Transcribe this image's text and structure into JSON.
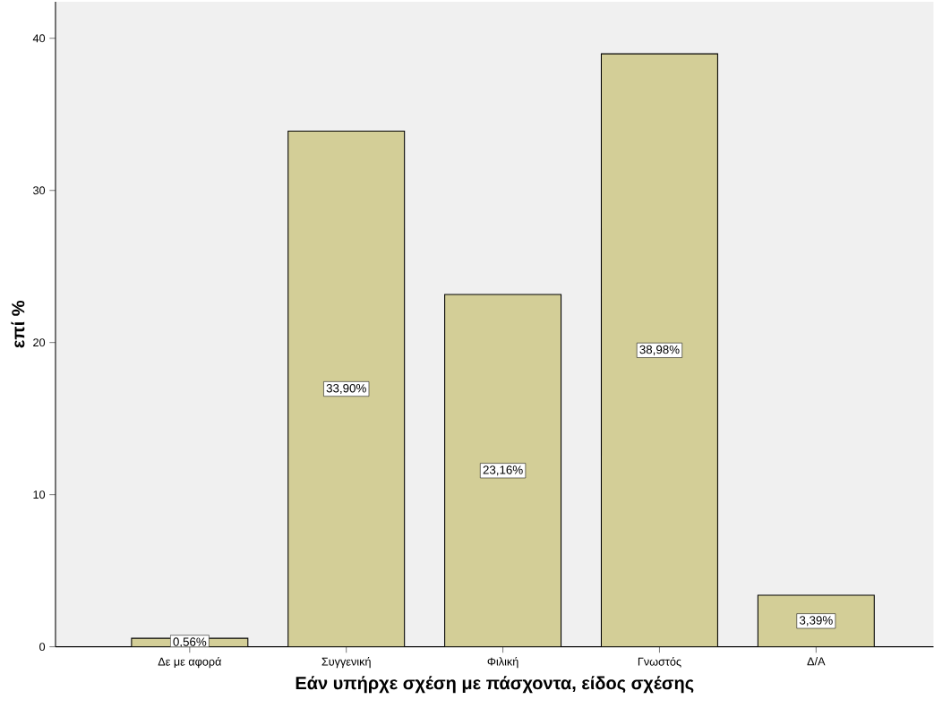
{
  "chart_data": {
    "type": "bar",
    "xlabel": "Εάν υπήρχε σχέση με πάσχοντα, είδος σχέσης",
    "ylabel": "επί %",
    "categories": [
      "Δε με αφορά",
      "Συγγενική",
      "Φιλική",
      "Γνωστός",
      "Δ/Α"
    ],
    "values": [
      0.56,
      33.9,
      23.16,
      38.98,
      3.39
    ],
    "value_labels": [
      "0,56%",
      "33,90%",
      "23,16%",
      "38,98%",
      "3,39%"
    ],
    "color": "#d3ce97",
    "ylim": [
      0,
      42.4
    ],
    "yticks": [
      0,
      10,
      20,
      30,
      40
    ],
    "grid": false
  }
}
